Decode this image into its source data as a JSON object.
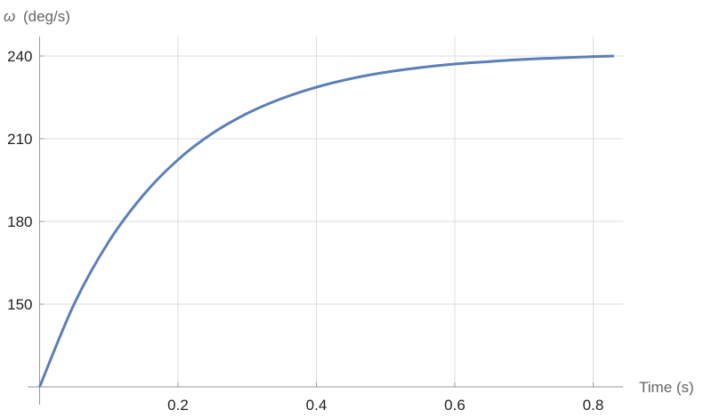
{
  "chart_data": {
    "type": "line",
    "title": "",
    "xlabel": "Time (s)",
    "ylabel_symbol": "ω",
    "ylabel_unit": "(deg/s)",
    "xlim": [
      0,
      0.84
    ],
    "ylim": [
      120,
      247
    ],
    "x_origin": 0,
    "y_origin": 120,
    "xticks": [
      0.2,
      0.4,
      0.6,
      0.8
    ],
    "xtick_labels": [
      "0.2",
      "0.4",
      "0.6",
      "0.8"
    ],
    "yticks": [
      150,
      180,
      210,
      240
    ],
    "ytick_labels": [
      "150",
      "180",
      "210",
      "240"
    ],
    "grid": true,
    "series": [
      {
        "color": "#5b7fb8",
        "x": [
          0,
          0.05,
          0.1,
          0.15,
          0.2,
          0.25,
          0.3,
          0.35,
          0.4,
          0.45,
          0.5,
          0.55,
          0.6,
          0.65,
          0.7,
          0.75,
          0.8,
          0.83
        ],
        "y": [
          120,
          150.1,
          172.7,
          189.6,
          202.4,
          212.0,
          219.2,
          224.6,
          228.7,
          231.8,
          234.1,
          235.8,
          237.1,
          238.0,
          238.8,
          239.3,
          239.8,
          240.0
        ]
      }
    ]
  }
}
